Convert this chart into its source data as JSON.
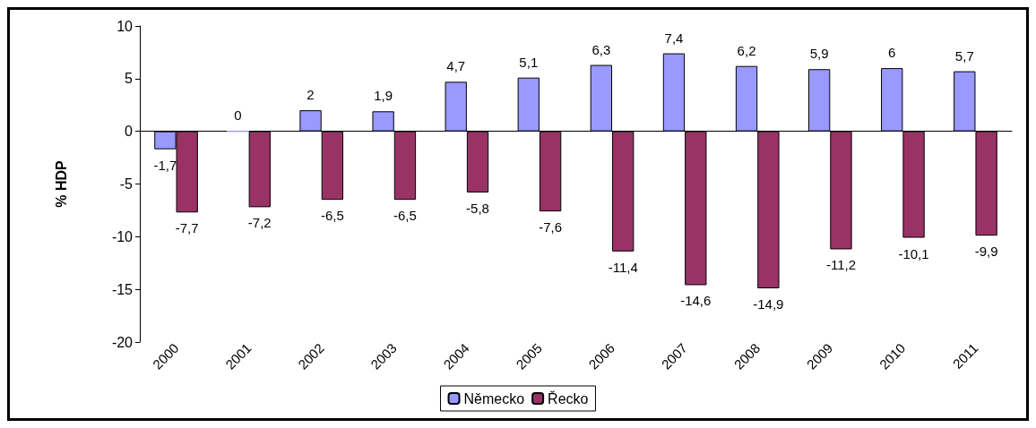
{
  "chart_data": {
    "type": "bar",
    "ylabel": "% HDP",
    "categories": [
      "2000",
      "2001",
      "2002",
      "2003",
      "2004",
      "2005",
      "2006",
      "2007",
      "2008",
      "2009",
      "2010",
      "2011"
    ],
    "series": [
      {
        "name": "Německo",
        "color": "#9999ff",
        "values": [
          -1.7,
          0,
          2,
          1.9,
          4.7,
          5.1,
          6.3,
          7.4,
          6.2,
          5.9,
          6,
          5.7
        ],
        "value_labels": [
          "-1,7",
          "0",
          "2",
          "1,9",
          "4,7",
          "5,1",
          "6,3",
          "7,4",
          "6,2",
          "5,9",
          "6",
          "5,7"
        ]
      },
      {
        "name": "Řecko",
        "color": "#993366",
        "values": [
          -7.7,
          -7.2,
          -6.5,
          -6.5,
          -5.8,
          -7.6,
          -11.4,
          -14.6,
          -14.9,
          -11.2,
          -10.1,
          -9.9
        ],
        "value_labels": [
          "-7,7",
          "-7,2",
          "-6,5",
          "-6,5",
          "-5,8",
          "-7,6",
          "-11,4",
          "-14,6",
          "-14,9",
          "-11,2",
          "-10,1",
          "-9,9"
        ]
      }
    ],
    "ylim": [
      -20,
      10
    ],
    "yticks": [
      -20,
      -15,
      -10,
      -5,
      0,
      5,
      10
    ],
    "legend": "bottom"
  }
}
